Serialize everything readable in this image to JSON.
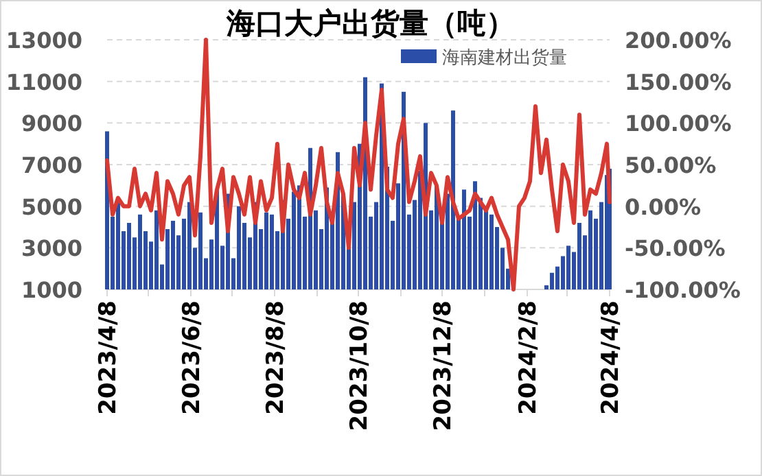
{
  "chart_data": {
    "type": "bar",
    "title": "海口大户出货量（吨）",
    "legend": "top right",
    "grid": "y",
    "x": [
      "2023-04-08",
      "2023-04-12",
      "2023-04-16",
      "2023-04-20",
      "2023-04-24",
      "2023-04-28",
      "2023-05-02",
      "2023-05-06",
      "2023-05-10",
      "2023-05-14",
      "2023-05-18",
      "2023-05-22",
      "2023-05-26",
      "2023-05-30",
      "2023-06-03",
      "2023-06-07",
      "2023-06-11",
      "2023-06-15",
      "2023-06-19",
      "2023-06-23",
      "2023-06-27",
      "2023-07-01",
      "2023-07-05",
      "2023-07-09",
      "2023-07-13",
      "2023-07-17",
      "2023-07-21",
      "2023-07-25",
      "2023-07-29",
      "2023-08-02",
      "2023-08-06",
      "2023-08-10",
      "2023-08-14",
      "2023-08-18",
      "2023-08-22",
      "2023-08-26",
      "2023-08-30",
      "2023-09-03",
      "2023-09-07",
      "2023-09-11",
      "2023-09-15",
      "2023-09-19",
      "2023-09-23",
      "2023-09-27",
      "2023-10-01",
      "2023-10-05",
      "2023-10-09",
      "2023-10-13",
      "2023-10-17",
      "2023-10-21",
      "2023-10-25",
      "2023-10-29",
      "2023-11-02",
      "2023-11-06",
      "2023-11-10",
      "2023-11-14",
      "2023-11-18",
      "2023-11-22",
      "2023-11-26",
      "2023-11-30",
      "2023-12-04",
      "2023-12-08",
      "2023-12-12",
      "2023-12-16",
      "2023-12-20",
      "2023-12-24",
      "2023-12-28",
      "2024-01-01",
      "2024-01-05",
      "2024-01-09",
      "2024-01-13",
      "2024-01-17",
      "2024-01-21",
      "2024-01-25",
      "2024-01-29",
      "2024-02-02",
      "2024-02-06",
      "2024-02-10",
      "2024-02-14",
      "2024-02-18",
      "2024-02-22",
      "2024-02-26",
      "2024-03-01",
      "2024-03-05",
      "2024-03-09",
      "2024-03-13",
      "2024-03-17",
      "2024-03-21",
      "2024-03-25",
      "2024-03-29",
      "2024-04-02",
      "2024-04-06",
      "2024-04-08"
    ],
    "xlim": [
      "2023-04-08",
      "2024-04-08"
    ],
    "xticks": [
      {
        "value": "2023-04-08",
        "label": "2023/4/8"
      },
      {
        "value": "2023-05-08",
        "label": null
      },
      {
        "value": "2023-06-08",
        "label": "2023/6/8"
      },
      {
        "value": "2023-07-08",
        "label": null
      },
      {
        "value": "2023-08-08",
        "label": "2023/8/8"
      },
      {
        "value": "2023-09-08",
        "label": null
      },
      {
        "value": "2023-10-08",
        "label": "2023/10/8"
      },
      {
        "value": "2023-11-08",
        "label": null
      },
      {
        "value": "2023-12-08",
        "label": "2023/12/8"
      },
      {
        "value": "2024-01-08",
        "label": null
      },
      {
        "value": "2024-02-08",
        "label": "2024/2/8"
      },
      {
        "value": "2024-03-08",
        "label": null
      },
      {
        "value": "2024-04-08",
        "label": "2024/4/8"
      }
    ],
    "ylim": [
      1000,
      13000
    ],
    "yticks": [
      1000,
      3000,
      5000,
      7000,
      9000,
      11000,
      13000
    ],
    "y2lim": [
      -100,
      200
    ],
    "y2ticks": [
      {
        "value": -100,
        "label": "-100.00%"
      },
      {
        "value": -50,
        "label": "-50.00%"
      },
      {
        "value": 0,
        "label": "0.00%"
      },
      {
        "value": 50,
        "label": "50.00%"
      },
      {
        "value": 100,
        "label": "100.00%"
      },
      {
        "value": 150,
        "label": "150.00%"
      },
      {
        "value": 200,
        "label": "200.00%"
      }
    ],
    "series": [
      {
        "name": "海南建材出货量",
        "color": "#2b4ea8",
        "values": [
          8600,
          4500,
          5200,
          3800,
          4200,
          3500,
          4600,
          3800,
          3300,
          4800,
          2200,
          3900,
          4300,
          3600,
          4400,
          5200,
          3000,
          4700,
          2500,
          3400,
          5800,
          3100,
          5600,
          2500,
          5000,
          4200,
          3500,
          5200,
          3900,
          4700,
          4600,
          3800,
          5300,
          4400,
          5700,
          6000,
          4500,
          7800,
          4800,
          3900,
          5900,
          4200,
          7600,
          5600,
          3000,
          5200,
          8000,
          11200,
          4500,
          5200,
          10900,
          6900,
          4300,
          6100,
          10500,
          4600,
          5300,
          6700,
          9000,
          4800,
          6000,
          4300,
          5600,
          9600,
          4400,
          5800,
          4500,
          6200,
          5400,
          5000,
          4600,
          4000,
          3000,
          2000,
          null,
          null,
          null,
          null,
          null,
          null,
          1200,
          1800,
          2100,
          2600,
          3100,
          2800,
          4200,
          3600,
          4800,
          4400,
          5200,
          6500,
          6800
        ]
      },
      {
        "type": "line",
        "axis": "y2",
        "color": "#d63a32",
        "values": [
          55,
          -10,
          10,
          0,
          0,
          45,
          0,
          15,
          -5,
          40,
          -40,
          30,
          15,
          -10,
          25,
          35,
          -35,
          60,
          200,
          -20,
          20,
          45,
          -30,
          35,
          15,
          -10,
          35,
          -20,
          30,
          -5,
          10,
          75,
          -30,
          50,
          20,
          10,
          40,
          -10,
          25,
          70,
          5,
          -20,
          40,
          15,
          -50,
          70,
          25,
          100,
          20,
          85,
          140,
          20,
          10,
          75,
          105,
          5,
          30,
          60,
          -10,
          40,
          25,
          -20,
          35,
          5,
          -15,
          -10,
          -5,
          15,
          5,
          -5,
          10,
          -10,
          -25,
          -40,
          -100,
          0,
          10,
          30,
          120,
          40,
          80,
          20,
          -30,
          50,
          30,
          -20,
          110,
          -10,
          20,
          15,
          40,
          75,
          5
        ]
      }
    ]
  }
}
